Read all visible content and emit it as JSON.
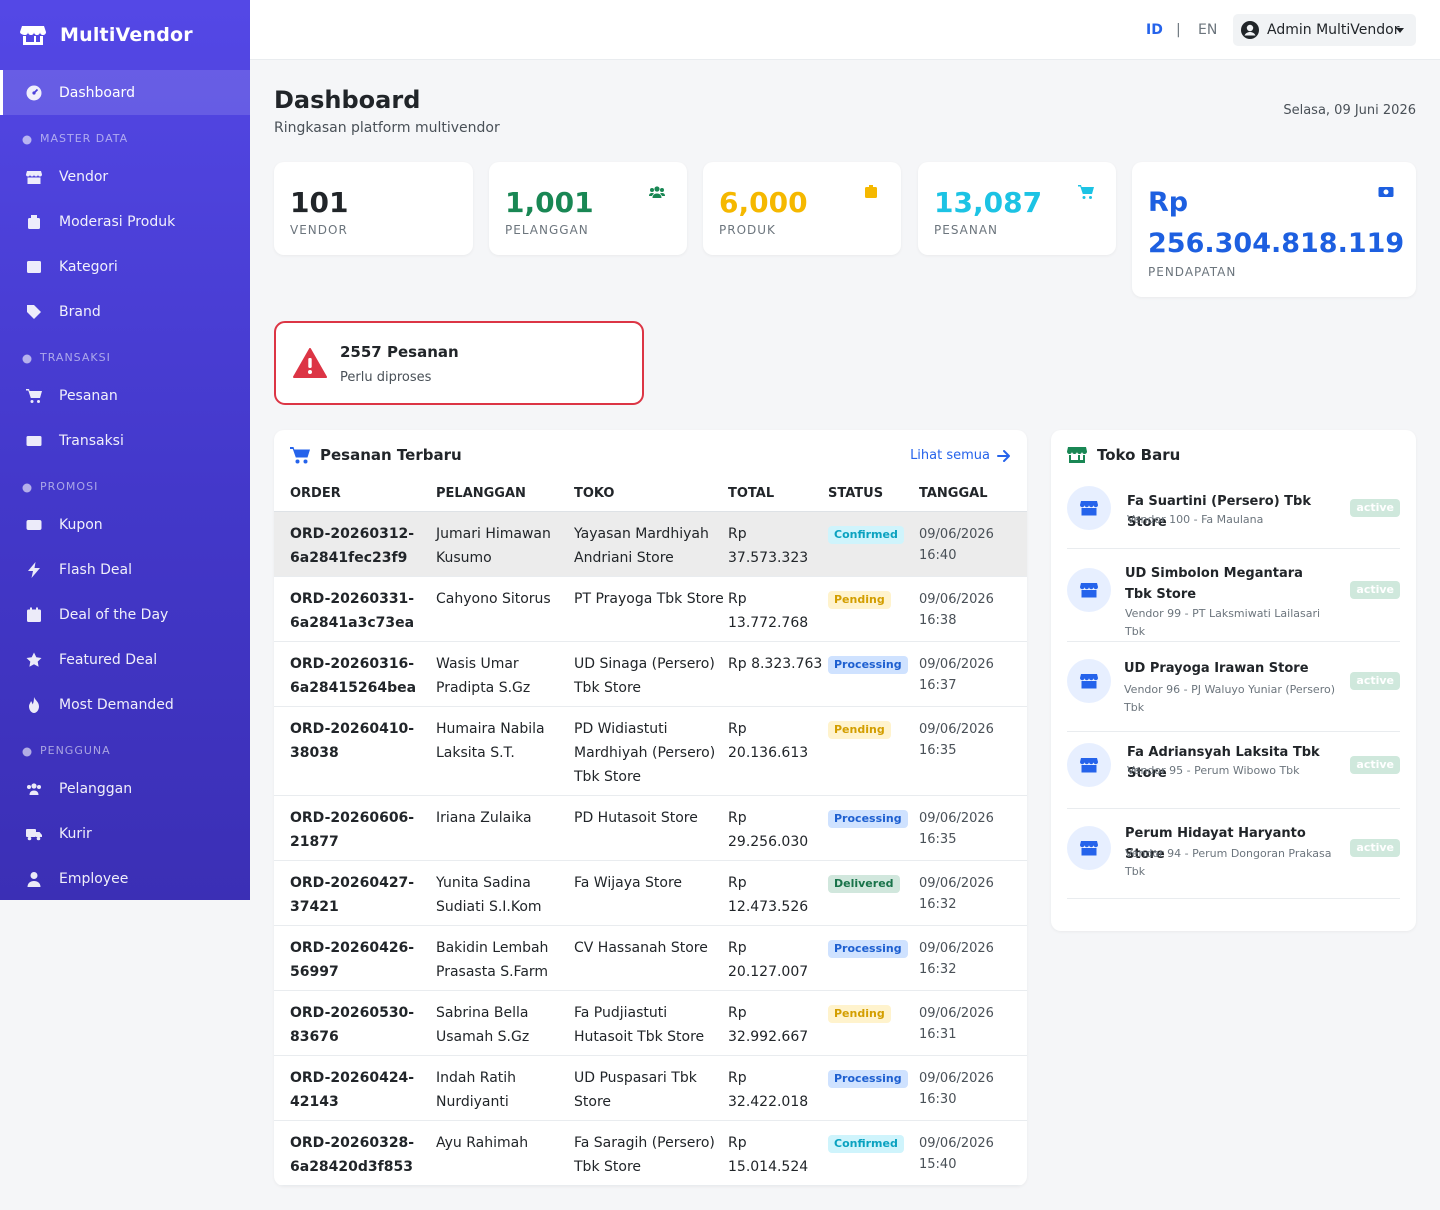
{
  "app": {
    "name": "MultiVendor"
  },
  "sidebar": {
    "items": [
      {
        "type": "item",
        "id": "dashboard",
        "label": "Dashboard",
        "icon": "gauge-icon",
        "active": true
      },
      {
        "type": "section",
        "id": "master",
        "label": "MASTER DATA"
      },
      {
        "type": "item",
        "id": "vendor",
        "label": "Vendor",
        "icon": "store-icon"
      },
      {
        "type": "item",
        "id": "moderasi",
        "label": "Moderasi Produk",
        "icon": "box-icon"
      },
      {
        "type": "item",
        "id": "kategori",
        "label": "Kategori",
        "icon": "list-icon"
      },
      {
        "type": "item",
        "id": "brand",
        "label": "Brand",
        "icon": "tag-icon"
      },
      {
        "type": "section",
        "id": "transaksi",
        "label": "TRANSAKSI"
      },
      {
        "type": "item",
        "id": "pesanan",
        "label": "Pesanan",
        "icon": "cart-icon"
      },
      {
        "type": "item",
        "id": "transaksi-item",
        "label": "Transaksi",
        "icon": "money-icon"
      },
      {
        "type": "section",
        "id": "promosi",
        "label": "PROMOSI"
      },
      {
        "type": "item",
        "id": "kupon",
        "label": "Kupon",
        "icon": "ticket-icon"
      },
      {
        "type": "item",
        "id": "flash",
        "label": "Flash Deal",
        "icon": "bolt-icon"
      },
      {
        "type": "item",
        "id": "deal",
        "label": "Deal of the Day",
        "icon": "calendar-icon"
      },
      {
        "type": "item",
        "id": "featured",
        "label": "Featured Deal",
        "icon": "star-icon"
      },
      {
        "type": "item",
        "id": "demanded",
        "label": "Most Demanded",
        "icon": "fire-icon"
      },
      {
        "type": "section",
        "id": "pengguna",
        "label": "PENGGUNA"
      },
      {
        "type": "item",
        "id": "pelanggan",
        "label": "Pelanggan",
        "icon": "users-icon"
      },
      {
        "type": "item",
        "id": "kurir",
        "label": "Kurir",
        "icon": "truck-icon"
      },
      {
        "type": "item",
        "id": "employee",
        "label": "Employee",
        "icon": "user-tie-icon"
      }
    ]
  },
  "topbar": {
    "lang_id": "ID",
    "lang_sep": "|",
    "lang_en": "EN",
    "user": "Admin MultiVendor"
  },
  "header": {
    "title": "Dashboard",
    "subtitle": "Ringkasan platform multivendor",
    "date": "Selasa, 09 Juni 2026"
  },
  "stats": [
    {
      "id": "vendor",
      "value": "101",
      "label": "VENDOR",
      "color": "#212529",
      "icon": ""
    },
    {
      "id": "pelanggan",
      "value": "1,001",
      "label": "PELANGGAN",
      "color": "#198754",
      "icon": "users-icon"
    },
    {
      "id": "produk",
      "value": "6,000",
      "label": "PRODUK",
      "color": "#f5b800",
      "icon": "box-icon"
    },
    {
      "id": "pesanan",
      "value": "13,087",
      "label": "PESANAN",
      "color": "#1cc3e4",
      "icon": "cart-icon"
    },
    {
      "id": "pendapatan",
      "value": "Rp 256.304.818.119",
      "label": "PENDAPATAN",
      "color": "#1d5fe0",
      "icon": "money-icon"
    }
  ],
  "alert": {
    "title": "2557 Pesanan",
    "text": "Perlu diproses",
    "color": "#dc3545"
  },
  "orders": {
    "title": "Pesanan Terbaru",
    "see_all": "Lihat semua",
    "columns": [
      "ORDER",
      "PELANGGAN",
      "TOKO",
      "TOTAL",
      "STATUS",
      "TANGGAL"
    ],
    "rows": [
      {
        "order": "ORD-20260312-6a2841fec23f9",
        "customer": "Jumari Himawan Kusumo",
        "store": "Yayasan Mardhiyah Andriani Store",
        "total": "Rp 37.573.323",
        "status": "Confirmed",
        "date": "09/06/2026 16:40"
      },
      {
        "order": "ORD-20260331-6a2841a3c73ea",
        "customer": "Cahyono Sitorus",
        "store": "PT Prayoga Tbk Store",
        "total": "Rp 13.772.768",
        "status": "Pending",
        "date": "09/06/2026 16:38"
      },
      {
        "order": "ORD-20260316-6a28415264bea",
        "customer": "Wasis Umar Pradipta S.Gz",
        "store": "UD Sinaga (Persero) Tbk Store",
        "total": "Rp 8.323.763",
        "status": "Processing",
        "date": "09/06/2026 16:37"
      },
      {
        "order": "ORD-20260410-38038",
        "customer": "Humaira Nabila Laksita S.T.",
        "store": "PD Widiastuti Mardhiyah (Persero) Tbk Store",
        "total": "Rp 20.136.613",
        "status": "Pending",
        "date": "09/06/2026 16:35"
      },
      {
        "order": "ORD-20260606-21877",
        "customer": "Iriana Zulaika",
        "store": "PD Hutasoit Store",
        "total": "Rp 29.256.030",
        "status": "Processing",
        "date": "09/06/2026 16:35"
      },
      {
        "order": "ORD-20260427-37421",
        "customer": "Yunita Sadina Sudiati S.I.Kom",
        "store": "Fa Wijaya Store",
        "total": "Rp 12.473.526",
        "status": "Delivered",
        "date": "09/06/2026 16:32"
      },
      {
        "order": "ORD-20260426-56997",
        "customer": "Bakidin Lembah Prasasta S.Farm",
        "store": "CV Hassanah Store",
        "total": "Rp 20.127.007",
        "status": "Processing",
        "date": "09/06/2026 16:32"
      },
      {
        "order": "ORD-20260530-83676",
        "customer": "Sabrina Bella Usamah S.Gz",
        "store": "Fa Pudjiastuti Hutasoit Tbk Store",
        "total": "Rp 32.992.667",
        "status": "Pending",
        "date": "09/06/2026 16:31"
      },
      {
        "order": "ORD-20260424-42143",
        "customer": "Indah Ratih Nurdiyanti",
        "store": "UD Puspasari Tbk Store",
        "total": "Rp 32.422.018",
        "status": "Processing",
        "date": "09/06/2026 16:30"
      },
      {
        "order": "ORD-20260328-6a28420d3f853",
        "customer": "Ayu Rahimah",
        "store": "Fa Saragih (Persero) Tbk Store",
        "total": "Rp 15.014.524",
        "status": "Confirmed",
        "date": "09/06/2026 15:40"
      }
    ]
  },
  "stores": {
    "title": "Toko Baru",
    "items": [
      {
        "name": "Fa Suartini (Persero) Tbk Store",
        "sub": "Vendor 100 - Fa Maulana",
        "status": "active"
      },
      {
        "name": "UD Simbolon Megantara Tbk Store",
        "sub": "Vendor 99 - PT Laksmiwati Lailasari Tbk",
        "status": "active"
      },
      {
        "name": "UD Prayoga Irawan Store",
        "sub": "Vendor 96 - PJ Waluyo Yuniar (Persero) Tbk",
        "status": "active"
      },
      {
        "name": "Fa Adriansyah Laksita Tbk Store",
        "sub": "Vendor 95 - Perum Wibowo Tbk",
        "status": "active"
      },
      {
        "name": "Perum Hidayat Haryanto Store",
        "sub": "Vendor 94 - Perum Dongoran Prakasa Tbk",
        "status": "active"
      }
    ]
  }
}
